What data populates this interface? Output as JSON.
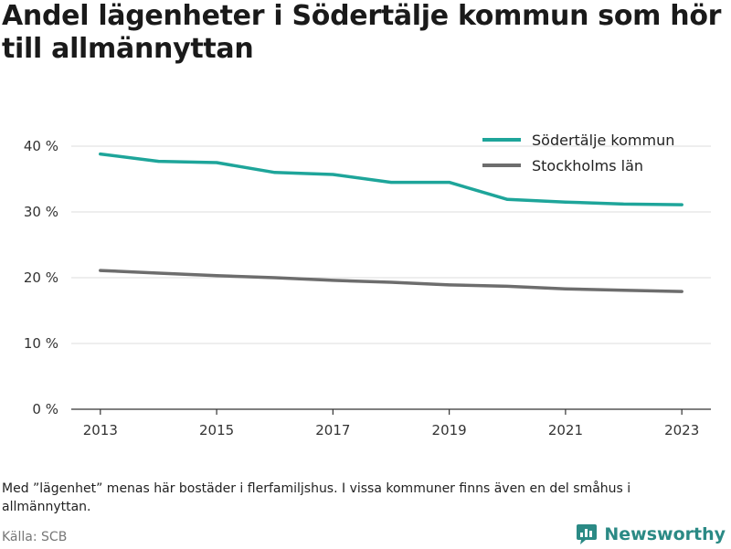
{
  "chart_data": {
    "type": "line",
    "title": "Andel lägenheter i Södertälje kommun som hör till allmännyttan",
    "x": [
      2013,
      2014,
      2015,
      2016,
      2017,
      2018,
      2019,
      2020,
      2021,
      2022,
      2023
    ],
    "x_ticks": [
      "2013",
      "2015",
      "2017",
      "2019",
      "2021",
      "2023"
    ],
    "xlim": [
      2012.5,
      2023.5
    ],
    "ylim": [
      0,
      40
    ],
    "y_ticks": [
      0,
      10,
      20,
      30,
      40
    ],
    "y_tick_labels": [
      "0 %",
      "10 %",
      "20 %",
      "30 %",
      "40 %"
    ],
    "grid": true,
    "legend_position": "top-right",
    "series": [
      {
        "name": "Södertälje kommun",
        "color": "#1ea59a",
        "values": [
          38.8,
          37.7,
          37.5,
          36.0,
          35.7,
          34.5,
          34.5,
          31.9,
          31.5,
          31.2,
          31.1
        ]
      },
      {
        "name": "Stockholms län",
        "color": "#6d6d6d",
        "values": [
          21.1,
          20.7,
          20.3,
          20.0,
          19.6,
          19.3,
          18.9,
          18.7,
          18.3,
          18.1,
          17.9
        ]
      }
    ]
  },
  "footer": {
    "note": "Med ”lägenhet” menas här bostäder i flerfamiljshus. I vissa kommuner finns även en del småhus i allmännyttan.",
    "source": "Källa: SCB",
    "brand": "Newsworthy",
    "brand_color": "#2b8a85",
    "brand_icon": "newsworthy-logo-icon"
  }
}
